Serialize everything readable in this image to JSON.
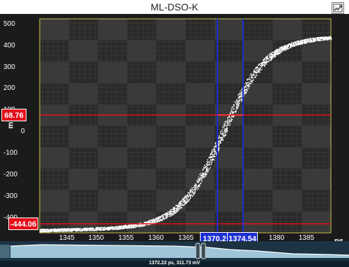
{
  "window": {
    "title": "ML-DSO-K",
    "export_icon": "chart-export-icon"
  },
  "axes": {
    "y_label": "mV",
    "y_ticks": [
      "500",
      "400",
      "300",
      "200",
      "100",
      "0",
      "-100",
      "-200",
      "-300",
      "-400"
    ],
    "x_unit": "ps",
    "x_ticks": [
      "1345",
      "1350",
      "1355",
      "1360",
      "1365",
      "1370",
      "1375",
      "1380",
      "1385"
    ]
  },
  "markers": {
    "h1": "68.76",
    "h2": "-444.06",
    "v1": "1370.2",
    "v2": "1374.54"
  },
  "overview": {
    "status": "1372.22 ps, 311.73 mV"
  },
  "colors": {
    "background": "#1b1b1b",
    "trace": "#ffffff",
    "horizontal_marker": "#e3101c",
    "vertical_marker": "#1c2fd0",
    "frame": "#cfc34a"
  }
}
